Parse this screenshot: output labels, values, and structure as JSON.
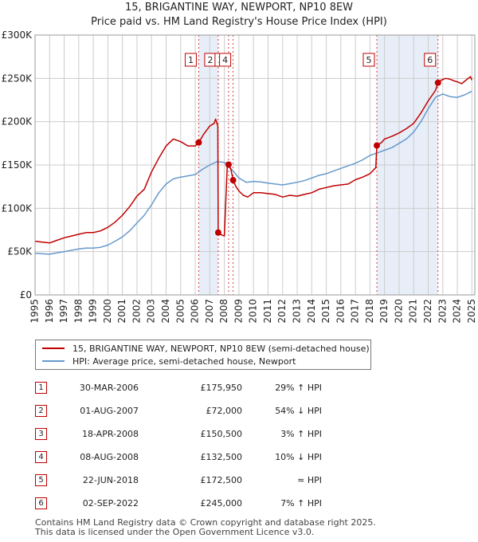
{
  "colors": {
    "property": "#c00000",
    "hpi": "#6699cc",
    "shade": "#e8eef8",
    "grid": "#cccccc"
  },
  "chart_data": {
    "type": "line",
    "title": "15, BRIGANTINE WAY, NEWPORT, NP10 8EW",
    "subtitle": "Price paid vs. HM Land Registry's House Price Index (HPI)",
    "xlim": [
      1995,
      2025.2
    ],
    "ylim": [
      0,
      300000
    ],
    "y_ticks": [
      0,
      50000,
      100000,
      150000,
      200000,
      250000,
      300000
    ],
    "y_tick_labels": [
      "£0",
      "£50K",
      "£100K",
      "£150K",
      "£200K",
      "£250K",
      "£300K"
    ],
    "x_ticks": [
      1995,
      1996,
      1997,
      1998,
      1999,
      2000,
      2001,
      2002,
      2003,
      2004,
      2005,
      2006,
      2007,
      2008,
      2009,
      2010,
      2011,
      2012,
      2013,
      2014,
      2015,
      2016,
      2017,
      2018,
      2019,
      2020,
      2021,
      2022,
      2023,
      2024,
      2025
    ],
    "x_tick_labels": [
      "1995",
      "1996",
      "1997",
      "1998",
      "1999",
      "2000",
      "2001",
      "2002",
      "2003",
      "2004",
      "2005",
      "2006",
      "2007",
      "2008",
      "2009",
      "2010",
      "2011",
      "2012",
      "2013",
      "2014",
      "2015",
      "2016",
      "2017",
      "2018",
      "2019",
      "2020",
      "2021",
      "2022",
      "2023",
      "2024",
      "2025"
    ],
    "grid": true,
    "legend_position": "below",
    "shaded_periods": [
      [
        2006.24,
        2007.58
      ],
      [
        2018.47,
        2022.67
      ]
    ],
    "series": [
      {
        "name": "15, BRIGANTINE WAY, NEWPORT, NP10 8EW (semi-detached house)",
        "x": [
          1995.0,
          1995.5,
          1996.0,
          1996.5,
          1997.0,
          1997.5,
          1998.0,
          1998.5,
          1999.0,
          1999.5,
          2000.0,
          2000.5,
          2001.0,
          2001.5,
          2002.0,
          2002.5,
          2003.0,
          2003.5,
          2004.0,
          2004.5,
          2005.0,
          2005.5,
          2006.0,
          2006.24,
          2006.6,
          2007.0,
          2007.3,
          2007.4,
          2007.55,
          2007.58,
          2007.7,
          2008.0,
          2008.2,
          2008.25,
          2008.29,
          2008.45,
          2008.6,
          2008.8,
          2009.0,
          2009.3,
          2009.6,
          2010.0,
          2010.5,
          2011.0,
          2011.5,
          2012.0,
          2012.5,
          2013.0,
          2013.5,
          2014.0,
          2014.5,
          2015.0,
          2015.5,
          2016.0,
          2016.5,
          2017.0,
          2017.5,
          2018.0,
          2018.4,
          2018.47,
          2018.8,
          2019.0,
          2019.5,
          2020.0,
          2020.5,
          2021.0,
          2021.5,
          2022.0,
          2022.5,
          2022.67,
          2022.9,
          2023.2,
          2023.5,
          2023.8,
          2024.0,
          2024.3,
          2024.6,
          2024.9,
          2025.0
        ],
        "values": [
          62000,
          61000,
          60000,
          63000,
          66000,
          68000,
          70000,
          72000,
          72000,
          74000,
          78000,
          84000,
          92000,
          102000,
          114000,
          122000,
          142000,
          158000,
          172000,
          180000,
          177000,
          172000,
          172000,
          175950,
          186000,
          195000,
          198000,
          203000,
          195000,
          72000,
          70000,
          68000,
          150000,
          150500,
          150500,
          145000,
          132500,
          125000,
          120000,
          115000,
          113000,
          118000,
          118000,
          117000,
          116000,
          113000,
          115000,
          114000,
          116000,
          118000,
          122000,
          124000,
          126000,
          127000,
          128000,
          133000,
          136000,
          140000,
          147000,
          172500,
          176000,
          180000,
          183000,
          187000,
          192000,
          198000,
          210000,
          224000,
          236000,
          245000,
          248000,
          250000,
          249000,
          247000,
          246000,
          244000,
          248000,
          252000,
          248000
        ]
      },
      {
        "name": "HPI: Average price, semi-detached house, Newport",
        "x": [
          1995.0,
          1995.5,
          1996.0,
          1996.5,
          1997.0,
          1997.5,
          1998.0,
          1998.5,
          1999.0,
          1999.5,
          2000.0,
          2000.5,
          2001.0,
          2001.5,
          2002.0,
          2002.5,
          2003.0,
          2003.5,
          2004.0,
          2004.5,
          2005.0,
          2005.5,
          2006.0,
          2006.5,
          2007.0,
          2007.5,
          2008.0,
          2008.5,
          2009.0,
          2009.5,
          2010.0,
          2010.5,
          2011.0,
          2011.5,
          2012.0,
          2012.5,
          2013.0,
          2013.5,
          2014.0,
          2014.5,
          2015.0,
          2015.5,
          2016.0,
          2016.5,
          2017.0,
          2017.5,
          2018.0,
          2018.5,
          2019.0,
          2019.5,
          2020.0,
          2020.5,
          2021.0,
          2021.5,
          2022.0,
          2022.5,
          2023.0,
          2023.5,
          2024.0,
          2024.5,
          2025.0
        ],
        "values": [
          48000,
          47500,
          47000,
          48500,
          50000,
          51500,
          53000,
          54000,
          54000,
          55000,
          57500,
          62000,
          67000,
          74000,
          83000,
          92000,
          104000,
          118000,
          128000,
          134000,
          136000,
          137500,
          139000,
          145000,
          150000,
          154000,
          153000,
          145000,
          135000,
          130000,
          131000,
          130500,
          129000,
          128000,
          127000,
          128500,
          130000,
          132000,
          135000,
          138000,
          140000,
          143000,
          146000,
          149000,
          152000,
          156000,
          161000,
          164000,
          167000,
          170000,
          175000,
          180000,
          188000,
          200000,
          215000,
          228000,
          232000,
          229000,
          228000,
          231000,
          235000
        ]
      }
    ],
    "markers": [
      {
        "label": "1",
        "x": 2006.24,
        "y": 175950
      },
      {
        "label": "2",
        "x": 2007.58,
        "y": 72000
      },
      {
        "label": "3",
        "x": 2008.29,
        "y": 150500
      },
      {
        "label": "4",
        "x": 2008.6,
        "y": 132500
      },
      {
        "label": "5",
        "x": 2018.47,
        "y": 172500
      },
      {
        "label": "6",
        "x": 2022.67,
        "y": 245000
      }
    ]
  },
  "legend": {
    "property_label": "15, BRIGANTINE WAY, NEWPORT, NP10 8EW (semi-detached house)",
    "hpi_label": "HPI: Average price, semi-detached house, Newport"
  },
  "sales": [
    {
      "num": "1",
      "date": "30-MAR-2006",
      "price": "£175,950",
      "hpi": "29% ↑ HPI"
    },
    {
      "num": "2",
      "date": "01-AUG-2007",
      "price": "£72,000",
      "hpi": "54% ↓ HPI"
    },
    {
      "num": "3",
      "date": "18-APR-2008",
      "price": "£150,500",
      "hpi": "3% ↑ HPI"
    },
    {
      "num": "4",
      "date": "08-AUG-2008",
      "price": "£132,500",
      "hpi": "10% ↓ HPI"
    },
    {
      "num": "5",
      "date": "22-JUN-2018",
      "price": "£172,500",
      "hpi": "≈ HPI"
    },
    {
      "num": "6",
      "date": "02-SEP-2022",
      "price": "£245,000",
      "hpi": "7% ↑ HPI"
    }
  ],
  "footer": {
    "line1": "Contains HM Land Registry data © Crown copyright and database right 2025.",
    "line2": "This data is licensed under the Open Government Licence v3.0."
  }
}
